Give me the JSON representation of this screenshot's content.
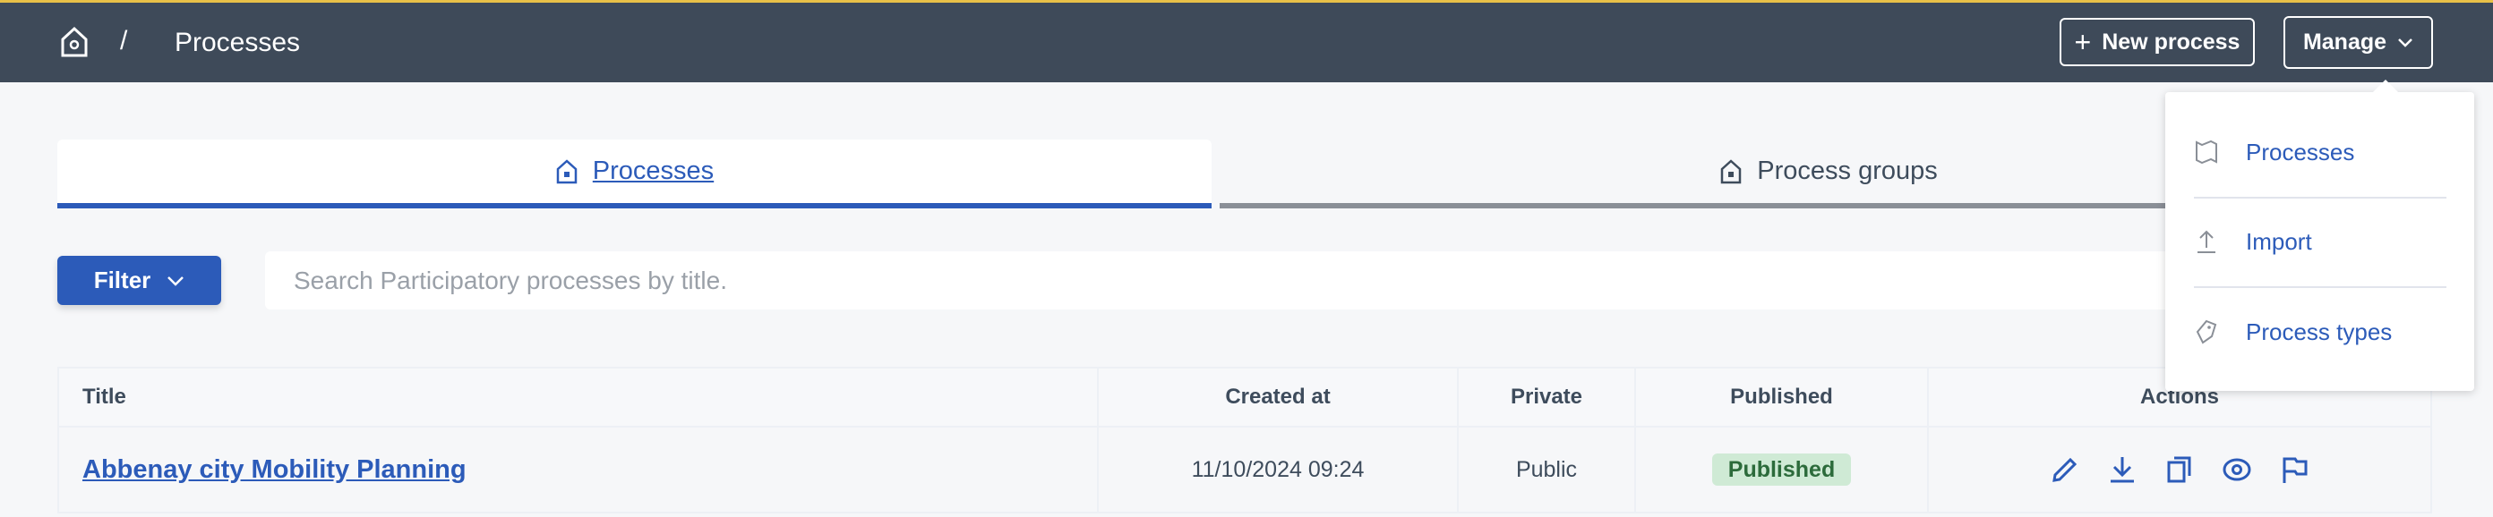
{
  "header": {
    "breadcrumb_sep": "/",
    "title": "Processes",
    "new_process": "New process",
    "manage": "Manage"
  },
  "tabs": [
    {
      "label": "Processes",
      "active": true
    },
    {
      "label": "Process groups",
      "active": false
    }
  ],
  "filter": {
    "label": "Filter",
    "search_placeholder": "Search Participatory processes by title."
  },
  "table": {
    "headers": [
      "Title",
      "Created at",
      "Private",
      "Published",
      "Actions"
    ],
    "rows": [
      {
        "title": "Abbenay city Mobility Planning",
        "created_at": "11/10/2024 09:24",
        "private": "Public",
        "published": "Published",
        "actions": [
          "edit-icon",
          "download-icon",
          "copy-icon",
          "preview-icon",
          "flag-icon"
        ]
      }
    ]
  },
  "manage_menu": {
    "items": [
      {
        "label": "Processes",
        "icon": "map-icon"
      },
      {
        "label": "Import",
        "icon": "upload-icon"
      },
      {
        "label": "Process types",
        "icon": "tag-icon"
      }
    ]
  },
  "colors": {
    "header": "#3e4a59",
    "accent": "#2c5bb9",
    "published_bg": "#cfead5"
  }
}
